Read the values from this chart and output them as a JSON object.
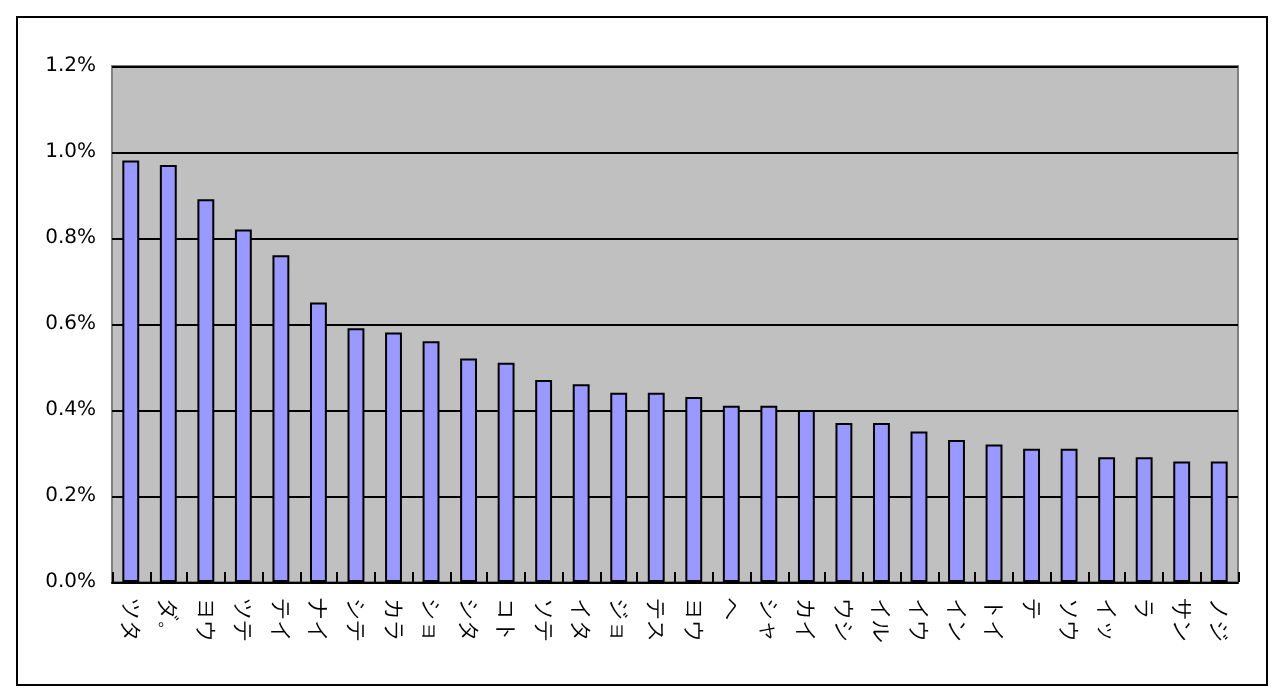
{
  "chart_data": {
    "type": "bar",
    "categories": [
      "ツタ",
      "ダ。",
      "ヨウ",
      "ツテ",
      "テイ",
      "ナイ",
      "シテ",
      "カラ",
      "ショ",
      "シタ",
      "コト",
      "ソテ",
      "イタ",
      "ジョ",
      "テス",
      "ヨウ",
      "ヘ",
      "シャ",
      "カイ",
      "ウシ",
      "イル",
      "イウ",
      "イン",
      "トイ",
      "テ",
      "ソウ",
      "イッ",
      "ラ",
      "サン",
      "ノジ"
    ],
    "values": [
      0.98,
      0.97,
      0.89,
      0.82,
      0.76,
      0.65,
      0.59,
      0.58,
      0.56,
      0.52,
      0.51,
      0.47,
      0.46,
      0.44,
      0.44,
      0.43,
      0.41,
      0.41,
      0.4,
      0.37,
      0.37,
      0.35,
      0.33,
      0.32,
      0.31,
      0.31,
      0.29,
      0.29,
      0.28,
      0.28
    ],
    "color": "#9999ff",
    "ylim": [
      0,
      1.2
    ],
    "yticks": [
      {
        "value": 0,
        "label": "0.0%"
      },
      {
        "value": 0.2,
        "label": "0.2%"
      },
      {
        "value": 0.4,
        "label": "0.4%"
      },
      {
        "value": 0.6,
        "label": "0.6%"
      },
      {
        "value": 0.8,
        "label": "0.8%"
      },
      {
        "value": 1.0,
        "label": "1.0%"
      },
      {
        "value": 1.2,
        "label": "1.2%"
      }
    ],
    "grid": "y"
  }
}
